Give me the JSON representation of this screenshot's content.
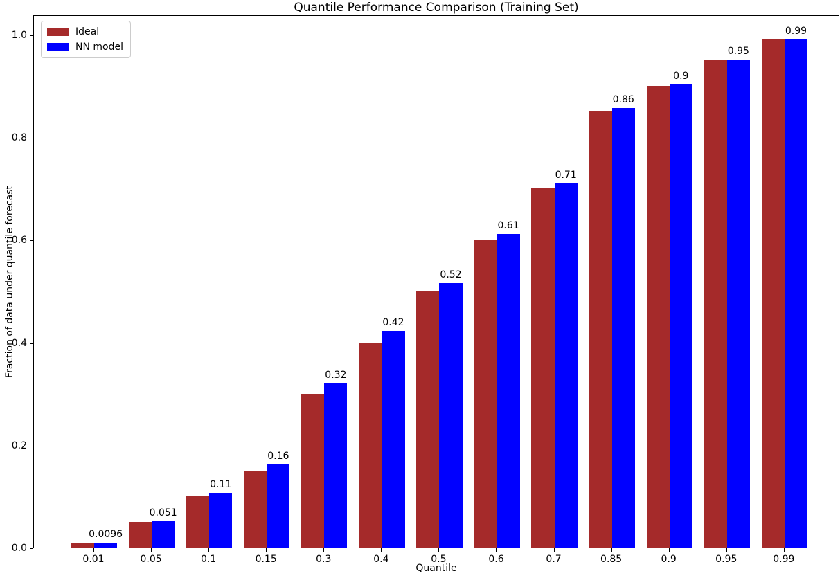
{
  "chart_data": {
    "type": "bar",
    "title": "Quantile Performance Comparison (Training Set)",
    "xlabel": "Quantile",
    "ylabel": "Fraction of data under quantile forecast",
    "categories": [
      "0.01",
      "0.05",
      "0.1",
      "0.15",
      "0.3",
      "0.4",
      "0.5",
      "0.6",
      "0.7",
      "0.85",
      "0.9",
      "0.95",
      "0.99"
    ],
    "series": [
      {
        "name": "Ideal",
        "color": "#a52a2a",
        "values": [
          0.01,
          0.05,
          0.1,
          0.15,
          0.3,
          0.4,
          0.5,
          0.6,
          0.7,
          0.85,
          0.9,
          0.95,
          0.99
        ]
      },
      {
        "name": "NN model",
        "color": "#0000ff",
        "values": [
          0.0096,
          0.051,
          0.107,
          0.162,
          0.32,
          0.422,
          0.516,
          0.611,
          0.71,
          0.857,
          0.903,
          0.951,
          0.99
        ]
      }
    ],
    "bar_labels": [
      "0.0096",
      "0.051",
      "0.11",
      "0.16",
      "0.32",
      "0.42",
      "0.52",
      "0.61",
      "0.71",
      "0.86",
      "0.9",
      "0.95",
      "0.99"
    ],
    "yticks": [
      "0.0",
      "0.2",
      "0.4",
      "0.6",
      "0.8",
      "1.0"
    ],
    "ylim": [
      0,
      1.039
    ],
    "legend_position": "upper left",
    "grid": false,
    "axis_color": "#000000"
  }
}
